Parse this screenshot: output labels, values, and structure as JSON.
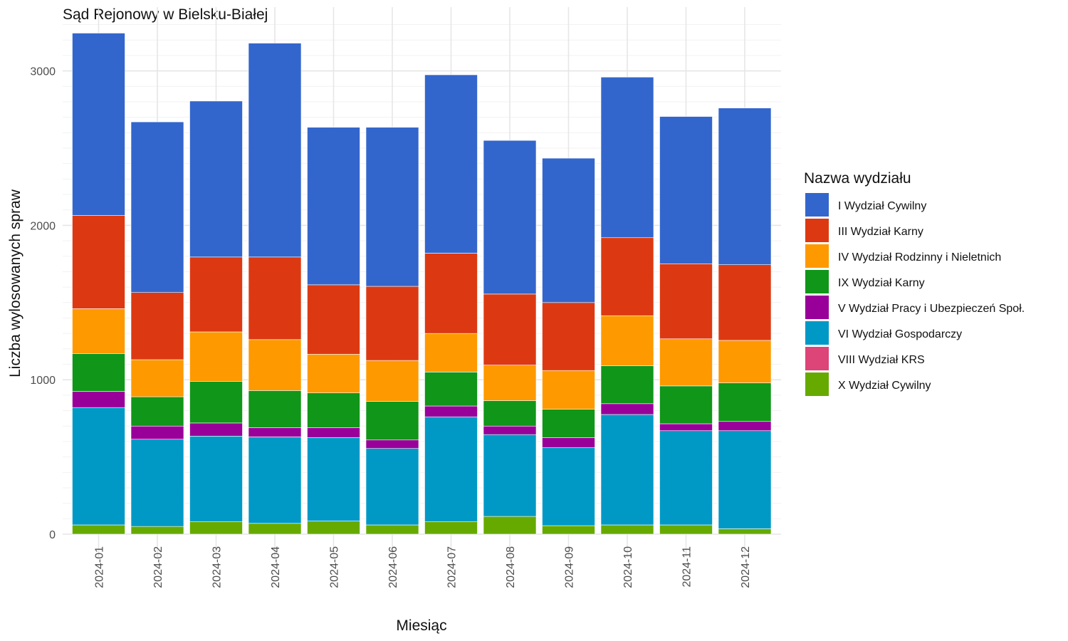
{
  "chart_data": {
    "type": "bar",
    "stacked": true,
    "title": "Sąd Rejonowy w Bielsku-Białej",
    "xlabel": "Miesiąc",
    "ylabel": "Liczba wylosowanych spraw",
    "ylim": [
      0,
      3300
    ],
    "yticks": [
      0,
      1000,
      2000,
      3000
    ],
    "grid": true,
    "legend_title": "Nazwa wydziału",
    "legend_position": "right",
    "categories": [
      "2024-01",
      "2024-02",
      "2024-03",
      "2024-04",
      "2024-05",
      "2024-06",
      "2024-07",
      "2024-08",
      "2024-09",
      "2024-10",
      "2024-11",
      "2024-12"
    ],
    "series": [
      {
        "name": "X Wydział Cywilny",
        "color": "#66aa00",
        "values": [
          60,
          50,
          80,
          70,
          85,
          60,
          80,
          115,
          55,
          60,
          60,
          35
        ]
      },
      {
        "name": "VIII Wydział KRS",
        "color": "#dd4477",
        "values": [
          0,
          0,
          0,
          0,
          0,
          0,
          0,
          0,
          0,
          0,
          0,
          0
        ]
      },
      {
        "name": "VI Wydział Gospodarczy",
        "color": "#0099c6",
        "values": [
          760,
          565,
          555,
          560,
          540,
          495,
          680,
          530,
          505,
          715,
          610,
          635
        ]
      },
      {
        "name": "V Wydział Pracy i Ubezpieczeń Społ.",
        "color": "#990099",
        "values": [
          105,
          85,
          85,
          60,
          65,
          55,
          70,
          55,
          65,
          70,
          45,
          60
        ]
      },
      {
        "name": "IX Wydział Karny",
        "color": "#109618",
        "values": [
          245,
          190,
          270,
          240,
          225,
          250,
          220,
          165,
          185,
          245,
          245,
          250
        ]
      },
      {
        "name": "IV Wydział Rodzinny i Nieletnich",
        "color": "#ff9900",
        "values": [
          290,
          240,
          320,
          330,
          250,
          265,
          250,
          230,
          250,
          325,
          305,
          275
        ]
      },
      {
        "name": "III Wydział Karny",
        "color": "#dc3912",
        "values": [
          605,
          435,
          485,
          535,
          450,
          480,
          520,
          460,
          440,
          505,
          485,
          490
        ]
      },
      {
        "name": "I Wydział Cywilny",
        "color": "#3366cc",
        "values": [
          1180,
          1105,
          1010,
          1385,
          1020,
          1030,
          1155,
          995,
          935,
          1040,
          955,
          1015
        ]
      }
    ]
  }
}
